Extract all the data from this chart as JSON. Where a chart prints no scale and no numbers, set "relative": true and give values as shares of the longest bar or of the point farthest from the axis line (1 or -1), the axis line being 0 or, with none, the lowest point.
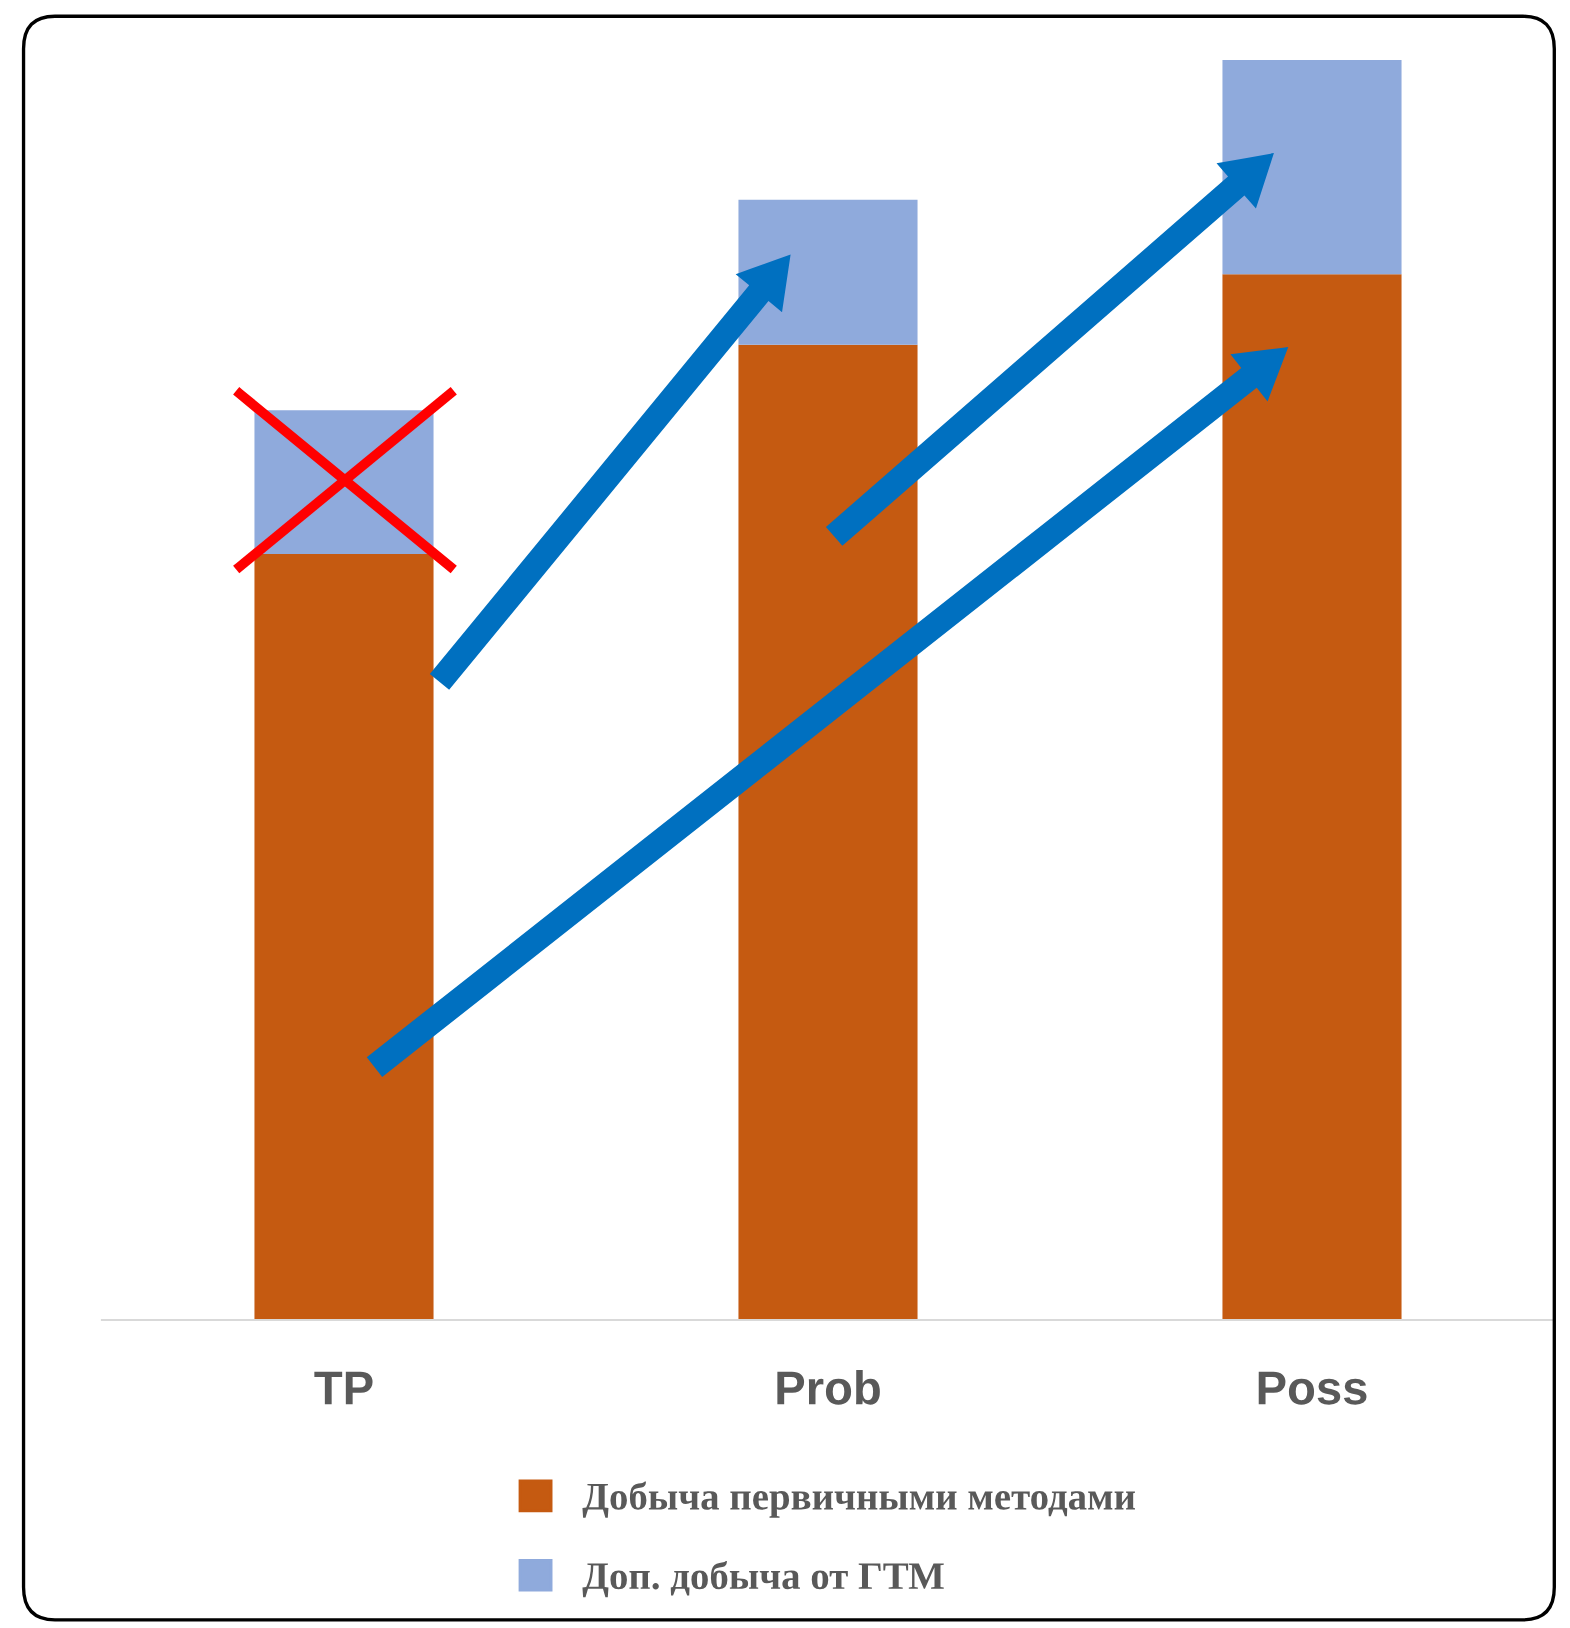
{
  "chart_data": {
    "type": "bar",
    "stacked": true,
    "relative": true,
    "legend": "bottom",
    "categories": [
      "TP",
      "Prob",
      "Poss"
    ],
    "series": [
      {
        "name": "Добыча первичными методами",
        "color": "#c55a11",
        "values": [
          0.608,
          0.774,
          0.83
        ]
      },
      {
        "name": "Доп. добыча от ГТМ",
        "color": "#8faadc",
        "values": [
          0.114,
          0.115,
          0.17
        ]
      }
    ]
  }
}
